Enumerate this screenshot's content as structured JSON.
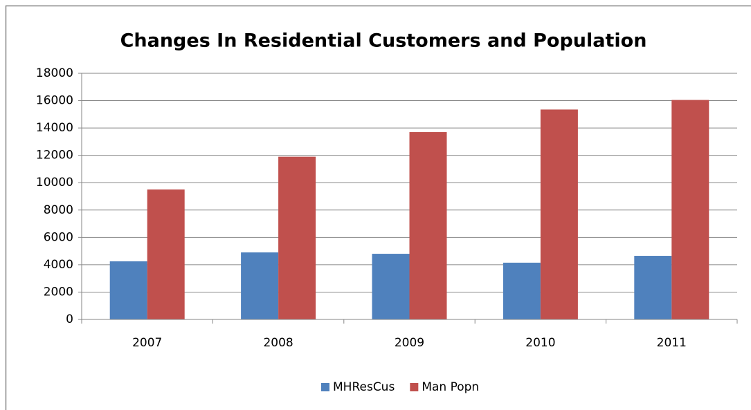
{
  "chart_data": {
    "type": "bar",
    "title": "Changes In Residential Customers and Population",
    "categories": [
      "2007",
      "2008",
      "2009",
      "2010",
      "2011"
    ],
    "series": [
      {
        "name": "MHResCus",
        "color": "#4f81bd",
        "values": [
          4250,
          4900,
          4800,
          4150,
          4650
        ]
      },
      {
        "name": "Man Popn",
        "color": "#c0504d",
        "values": [
          9500,
          11900,
          13700,
          15350,
          16050
        ]
      }
    ],
    "ylim": [
      0,
      18000
    ],
    "yticks": [
      0,
      2000,
      4000,
      6000,
      8000,
      10000,
      12000,
      14000,
      16000,
      18000
    ],
    "grid": true,
    "legend": "bottom"
  }
}
